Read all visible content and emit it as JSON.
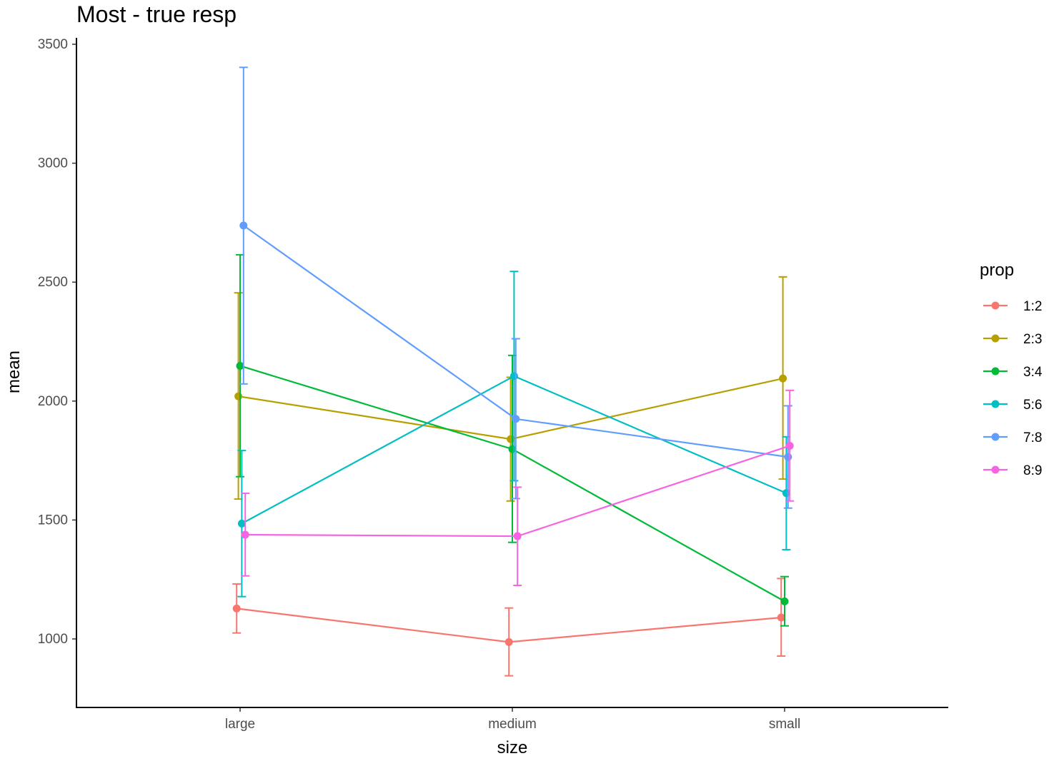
{
  "chart_data": {
    "type": "line",
    "title": "Most - true resp",
    "xlabel": "size",
    "ylabel": "mean",
    "categories": [
      "large",
      "medium",
      "small"
    ],
    "yticks": [
      1000,
      1500,
      2000,
      2500,
      3000,
      3500
    ],
    "ylim": [
      715,
      3505
    ],
    "grid": false,
    "legend": {
      "title": "prop",
      "position": "right"
    },
    "series": [
      {
        "name": "1:2",
        "color": "#F8766D",
        "values": [
          1128,
          987,
          1090
        ],
        "lower": [
          1025,
          845,
          928
        ],
        "upper": [
          1231,
          1130,
          1254
        ]
      },
      {
        "name": "2:3",
        "color": "#B79F00",
        "values": [
          2020,
          1840,
          2095
        ],
        "lower": [
          1588,
          1580,
          1672
        ],
        "upper": [
          2455,
          2100,
          2522
        ]
      },
      {
        "name": "3:4",
        "color": "#00BA38",
        "values": [
          2148,
          1798,
          1158
        ],
        "lower": [
          1682,
          1406,
          1055
        ],
        "upper": [
          2615,
          2192,
          1262
        ]
      },
      {
        "name": "5:6",
        "color": "#00BFC4",
        "values": [
          1485,
          2105,
          1613
        ],
        "lower": [
          1178,
          1665,
          1375
        ],
        "upper": [
          1792,
          2545,
          1850
        ]
      },
      {
        "name": "7:8",
        "color": "#619CFF",
        "values": [
          2738,
          1925,
          1765
        ],
        "lower": [
          2072,
          1590,
          1550
        ],
        "upper": [
          3403,
          2262,
          1980
        ]
      },
      {
        "name": "8:9",
        "color": "#F564E3",
        "values": [
          1438,
          1432,
          1812
        ],
        "lower": [
          1265,
          1225,
          1580
        ],
        "upper": [
          1612,
          1638,
          2045
        ]
      }
    ]
  }
}
